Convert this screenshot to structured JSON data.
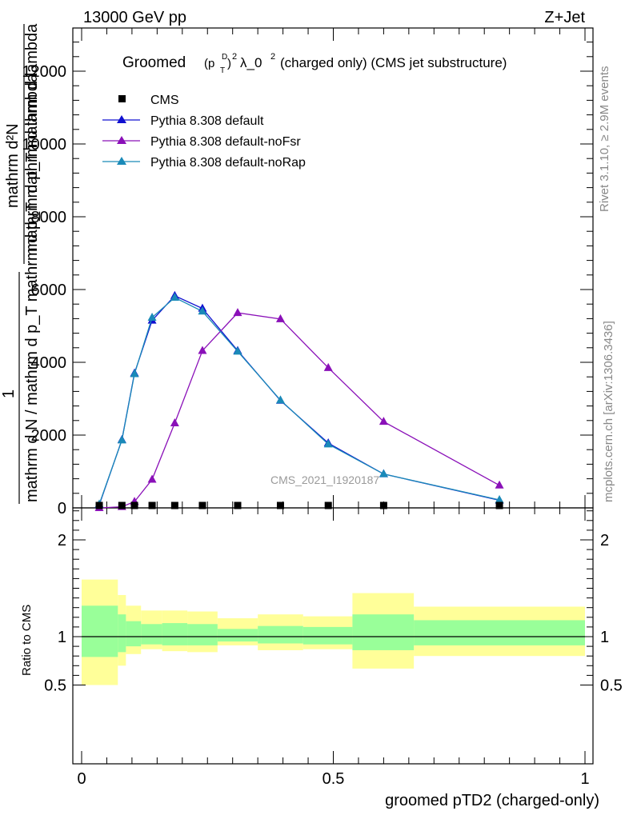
{
  "header": {
    "left": "13000 GeV pp",
    "right": "Z+Jet"
  },
  "title": {
    "prefix": "Groomed",
    "math_p": "(p",
    "math_sup_D": "D",
    "math_sub_T": "T",
    "math_close": ")",
    "math_sup_2": "2",
    "lambda": "λ_0",
    "lambda_sup": "2",
    "suffix": " (charged only) (CMS jet substructure)"
  },
  "side_labels": {
    "rivet": "Rivet 3.1.10, ≥ 2.9M events",
    "mcplots": "mcplots.cern.ch [arXiv:1306.3436]"
  },
  "watermark": "CMS_2021_I1920187",
  "ylabel_main": {
    "numerator_line1": "mathrm d²N",
    "numerator_line2": "mathrm d p_T mathrm d lambda",
    "one": "1",
    "denominator": "mathrm d N / mathrm d p_T mathrm d p_T mathrm d lambda"
  },
  "ylabel_ratio": "Ratio to CMS",
  "xlabel": "groomed pTD2 (charged-only)",
  "legend": [
    {
      "label": "CMS",
      "color": "#000000",
      "marker": "square"
    },
    {
      "label": "Pythia 8.308 default",
      "color": "#1010d0",
      "marker": "triangle"
    },
    {
      "label": "Pythia 8.308 default-noFsr",
      "color": "#8a10b8",
      "marker": "triangle"
    },
    {
      "label": "Pythia 8.308 default-noRap",
      "color": "#1a8ab8",
      "marker": "triangle"
    }
  ],
  "chart_data": {
    "type": "line",
    "xlim": [
      -0.02,
      1.02
    ],
    "ylim_main": [
      0,
      13000
    ],
    "ylim_ratio": [
      0.34,
      2.35
    ],
    "y_ticks_main": [
      0,
      2000,
      4000,
      6000,
      8000,
      10000,
      12000
    ],
    "y_tick_labels_main": [
      "0",
      "2000",
      "4000",
      "6000",
      "8000",
      "10000",
      "12000"
    ],
    "y_ticks_ratio": [
      0.5,
      1,
      2
    ],
    "y_tick_labels_ratio": [
      "0.5",
      "1",
      "2"
    ],
    "x_ticks": [
      0,
      0.5,
      1
    ],
    "x_tick_labels": [
      "0",
      "0.5",
      "1"
    ],
    "data": {
      "name": "CMS",
      "x": [
        0.035,
        0.08,
        0.105,
        0.14,
        0.185,
        0.24,
        0.31,
        0.395,
        0.49,
        0.6,
        0.83
      ],
      "y": [
        5,
        15,
        20,
        25,
        20,
        15,
        15,
        10,
        10,
        5,
        2
      ]
    },
    "series": [
      {
        "name": "Pythia 8.308 default",
        "color": "#1010d0",
        "x": [
          0.035,
          0.08,
          0.105,
          0.14,
          0.185,
          0.24,
          0.31,
          0.395,
          0.49,
          0.6,
          0.83
        ],
        "y": [
          80,
          1870,
          3700,
          5150,
          5830,
          5480,
          4320,
          2950,
          1780,
          930,
          210
        ]
      },
      {
        "name": "Pythia 8.308 default-noFsr",
        "color": "#8a10b8",
        "x": [
          0.035,
          0.08,
          0.105,
          0.14,
          0.185,
          0.24,
          0.31,
          0.395,
          0.49,
          0.6,
          0.83
        ],
        "y": [
          0,
          30,
          170,
          780,
          2330,
          4320,
          5360,
          5190,
          3850,
          2370,
          620
        ]
      },
      {
        "name": "Pythia 8.308 default-noRap",
        "color": "#1a8ab8",
        "x": [
          0.035,
          0.08,
          0.105,
          0.14,
          0.185,
          0.24,
          0.31,
          0.395,
          0.49,
          0.6,
          0.83
        ],
        "y": [
          100,
          1860,
          3680,
          5230,
          5780,
          5400,
          4300,
          2960,
          1750,
          930,
          220
        ]
      }
    ],
    "ratio_bands": {
      "edges": [
        0.0,
        0.072,
        0.088,
        0.118,
        0.16,
        0.21,
        0.27,
        0.35,
        0.44,
        0.538,
        0.66,
        1.0
      ],
      "yellow_lo": [
        0.5,
        0.7,
        0.82,
        0.87,
        0.85,
        0.84,
        0.91,
        0.86,
        0.87,
        0.67,
        0.8
      ],
      "yellow_hi": [
        1.59,
        1.43,
        1.32,
        1.27,
        1.27,
        1.26,
        1.19,
        1.23,
        1.21,
        1.45,
        1.31
      ],
      "green_lo": [
        0.79,
        0.84,
        0.9,
        0.92,
        0.91,
        0.91,
        0.95,
        0.93,
        0.92,
        0.86,
        0.91
      ],
      "green_hi": [
        1.32,
        1.23,
        1.16,
        1.13,
        1.14,
        1.13,
        1.08,
        1.11,
        1.1,
        1.23,
        1.17
      ]
    }
  }
}
